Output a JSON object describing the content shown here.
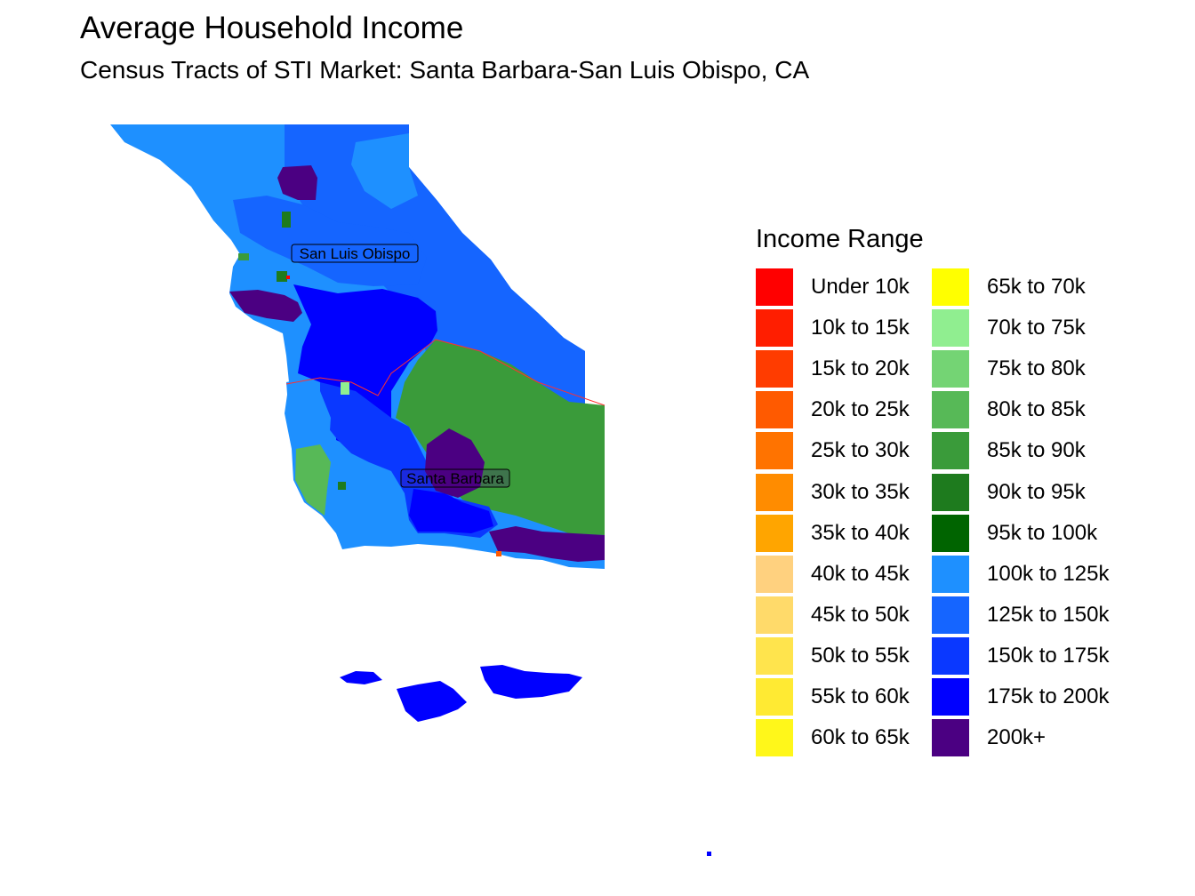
{
  "title": "Average Household Income",
  "subtitle": "Census Tracts of STI Market: Santa Barbara-San Luis Obispo, CA",
  "cities": [
    {
      "name": "San Luis Obispo"
    },
    {
      "name": "Santa Barbara"
    }
  ],
  "legend": {
    "title": "Income Range",
    "columns": [
      [
        {
          "label": "Under 10k",
          "color": "#FF0000"
        },
        {
          "label": "10k to 15k",
          "color": "#FF1E00"
        },
        {
          "label": "15k to 20k",
          "color": "#FF3C00"
        },
        {
          "label": "20k to 25k",
          "color": "#FF5A00"
        },
        {
          "label": "25k to 30k",
          "color": "#FF7300"
        },
        {
          "label": "30k to 35k",
          "color": "#FF8C00"
        },
        {
          "label": "35k to 40k",
          "color": "#FFA500"
        },
        {
          "label": "40k to 45k",
          "color": "#FFD17F"
        },
        {
          "label": "45k to 50k",
          "color": "#FFDA6A"
        },
        {
          "label": "50k to 55k",
          "color": "#FFE44D"
        },
        {
          "label": "55k to 60k",
          "color": "#FFEA33"
        },
        {
          "label": "60k to 65k",
          "color": "#FFF71A"
        }
      ],
      [
        {
          "label": "65k to 70k",
          "color": "#FFFF00"
        },
        {
          "label": "70k to 75k",
          "color": "#90EE90"
        },
        {
          "label": "75k to 80k",
          "color": "#74D474"
        },
        {
          "label": "80k to 85k",
          "color": "#57B957"
        },
        {
          "label": "85k to 90k",
          "color": "#3A9B3A"
        },
        {
          "label": "90k to 95k",
          "color": "#1E7B1E"
        },
        {
          "label": "95k to 100k",
          "color": "#006400"
        },
        {
          "label": "100k to 125k",
          "color": "#1E90FF"
        },
        {
          "label": "125k to 150k",
          "color": "#1565FF"
        },
        {
          "label": "150k to 175k",
          "color": "#0A38FF"
        },
        {
          "label": "175k to 200k",
          "color": "#0000FF"
        },
        {
          "label": "200k+",
          "color": "#4B0082"
        }
      ]
    ]
  }
}
